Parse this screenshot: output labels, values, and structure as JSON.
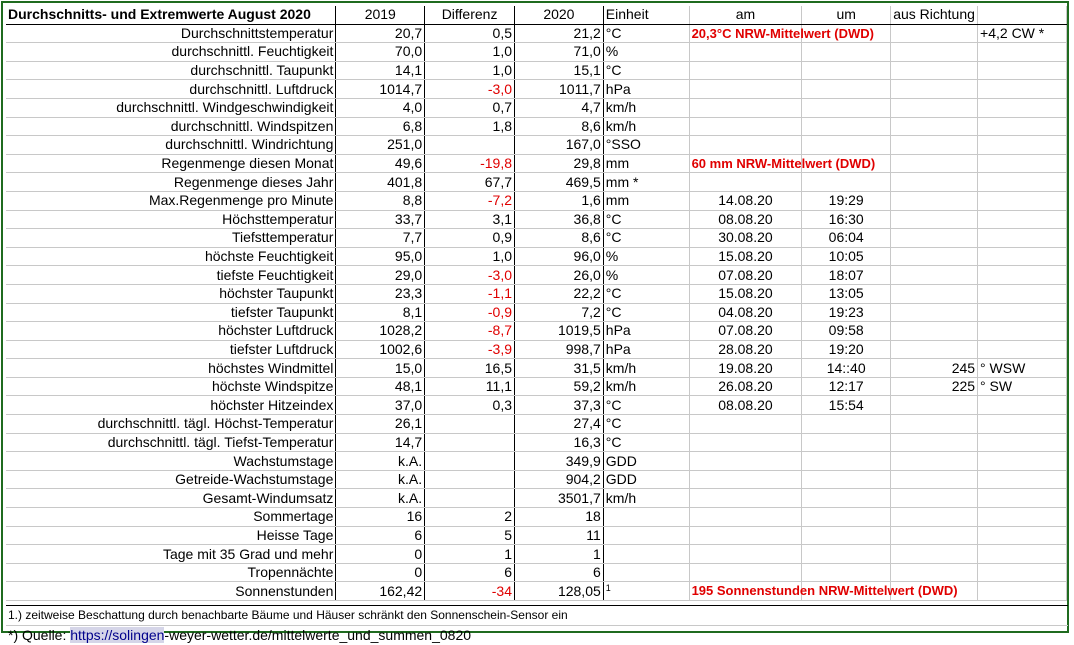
{
  "headers": {
    "label": "Durchschnitts- und Extremwerte August 2020",
    "y2019": "2019",
    "diff": "Differenz",
    "y2020": "2020",
    "unit": "Einheit",
    "am": "am",
    "um": "um",
    "dir": "aus Richtung"
  },
  "rows": [
    {
      "label": "Durchschnittstemperatur",
      "v2019": "20,7",
      "diff": "0,5",
      "v2020": "21,2",
      "unit": "°C",
      "note": "20,3°C NRW-Mittelwert (DWD)",
      "extra": "+4,2 CW  *"
    },
    {
      "label": "durchschnittl. Feuchtigkeit",
      "v2019": "70,0",
      "diff": "1,0",
      "v2020": "71,0",
      "unit": "%"
    },
    {
      "label": "durchschnittl. Taupunkt",
      "v2019": "14,1",
      "diff": "1,0",
      "v2020": "15,1",
      "unit": "°C"
    },
    {
      "label": "durchschnittl. Luftdruck",
      "v2019": "1014,7",
      "diff": "-3,0",
      "diff_neg": true,
      "v2020": "1011,7",
      "unit": " hPa"
    },
    {
      "label": "durchschnittl. Windgeschwindigkeit",
      "v2019": "4,0",
      "diff": "0,7",
      "v2020": "4,7",
      "unit": "km/h"
    },
    {
      "label": "durchschnittl. Windspitzen",
      "v2019": "6,8",
      "diff": "1,8",
      "v2020": "8,6",
      "unit": "km/h"
    },
    {
      "label": "durchschnittl. Windrichtung",
      "v2019": "251,0",
      "diff": "",
      "v2020": "167,0",
      "unit": "°SSO"
    },
    {
      "label": "Regenmenge diesen Monat",
      "v2019": "49,6",
      "diff": "-19,8",
      "diff_neg": true,
      "v2020": "29,8",
      "unit": " mm",
      "note": "60 mm NRW-Mittelwert (DWD)"
    },
    {
      "label": "Regenmenge dieses Jahr",
      "v2019": "401,8",
      "diff": "67,7",
      "v2020": "469,5",
      "unit": " mm     *"
    },
    {
      "label": "Max.Regenmenge pro Minute",
      "v2019": "8,8",
      "diff": "-7,2",
      "diff_neg": true,
      "v2020": "1,6",
      "unit": " mm",
      "am": "14.08.20",
      "um": "19:29"
    },
    {
      "label": "Höchsttemperatur",
      "v2019": "33,7",
      "diff": "3,1",
      "v2020": "36,8",
      "unit": "°C",
      "am": "08.08.20",
      "um": "16:30"
    },
    {
      "label": "Tiefsttemperatur",
      "v2019": "7,7",
      "diff": "0,9",
      "v2020": "8,6",
      "unit": "°C",
      "am": "30.08.20",
      "um": "06:04"
    },
    {
      "label": "höchste Feuchtigkeit",
      "v2019": "95,0",
      "diff": "1,0",
      "v2020": "96,0",
      "unit": "%",
      "am": "15.08.20",
      "um": "10:05"
    },
    {
      "label": "tiefste Feuchtigkeit",
      "v2019": "29,0",
      "diff": "-3,0",
      "diff_neg": true,
      "v2020": "26,0",
      "unit": "%",
      "am": "07.08.20",
      "um": "18:07"
    },
    {
      "label": "höchster Taupunkt",
      "v2019": "23,3",
      "diff": "-1,1",
      "diff_neg": true,
      "v2020": "22,2",
      "unit": "°C",
      "am": "15.08.20",
      "um": "13:05"
    },
    {
      "label": "tiefster Taupunkt",
      "v2019": "8,1",
      "diff": "-0,9",
      "diff_neg": true,
      "v2020": "7,2",
      "unit": "°C",
      "am": "04.08.20",
      "um": "19:23"
    },
    {
      "label": "höchster Luftdruck",
      "v2019": "1028,2",
      "diff": "-8,7",
      "diff_neg": true,
      "v2020": "1019,5",
      "unit": "hPa",
      "am": "07.08.20",
      "um": "09:58"
    },
    {
      "label": "tiefster Luftdruck",
      "v2019": "1002,6",
      "diff": "-3,9",
      "diff_neg": true,
      "v2020": "998,7",
      "unit": " hPa",
      "am": "28.08.20",
      "um": "19:20"
    },
    {
      "label": "höchstes Windmittel",
      "v2019": "15,0",
      "diff": "16,5",
      "v2020": "31,5",
      "unit": " km/h",
      "am": "19.08.20",
      "um": "14::40",
      "dir_deg": "245",
      "dir_txt": "° WSW"
    },
    {
      "label": "höchste Windspitze",
      "v2019": "48,1",
      "diff": "11,1",
      "v2020": "59,2",
      "unit": " km/h",
      "am": "26.08.20",
      "um": "12:17",
      "dir_deg": "225",
      "dir_txt": "° SW"
    },
    {
      "label": "höchster Hitzeindex",
      "v2019": "37,0",
      "diff": "0,3",
      "v2020": "37,3",
      "unit": "°C",
      "am": "08.08.20",
      "um": "15:54"
    },
    {
      "label": "durchschnittl. tägl. Höchst-Temperatur",
      "v2019": "26,1",
      "diff": "",
      "v2020": "27,4",
      "unit": "°C"
    },
    {
      "label": "durchschnittl. tägl. Tiefst-Temperatur",
      "v2019": "14,7",
      "diff": "",
      "v2020": "16,3",
      "unit": "°C"
    },
    {
      "label": "Wachstumstage",
      "v2019": "k.A.",
      "diff": "",
      "v2020": "349,9",
      "unit": " GDD"
    },
    {
      "label": "Getreide-Wachstumstage",
      "v2019": "k.A.",
      "diff": "",
      "v2020": "904,2",
      "unit": " GDD"
    },
    {
      "label": "Gesamt-Windumsatz",
      "v2019": "k.A.",
      "diff": "",
      "v2020": "3501,7",
      "unit": " km/h"
    },
    {
      "label": "Sommertage",
      "v2019": "16",
      "diff": "2",
      "v2020": "18",
      "unit": ""
    },
    {
      "label": "Heisse Tage",
      "v2019": "6",
      "diff": "5",
      "v2020": "11",
      "unit": ""
    },
    {
      "label": "Tage mit 35 Grad und mehr",
      "v2019": "0",
      "diff": "1",
      "v2020": "1",
      "unit": ""
    },
    {
      "label": "Tropennächte",
      "v2019": "0",
      "diff": "6",
      "v2020": "6",
      "unit": ""
    },
    {
      "label": "Sonnenstunden",
      "v2019": "162,42",
      "diff": "-34",
      "diff_neg": true,
      "v2020": "128,05",
      "unit": "1",
      "unit_sup": true,
      "note": "195 Sonnenstunden NRW-Mittelwert (DWD)"
    }
  ],
  "footer": {
    "note1": "1.) zeitweise Beschattung durch benachbarte Bäume und Häuser schränkt den Sonnenschein-Sensor ein",
    "source_prefix": "*) Quelle: ",
    "source_link_part": "https://solingen",
    "source_rest": "-weyer-wetter.de/mittelwerte_und_summen_0820"
  },
  "colors": {
    "frame": "#1f6b1f",
    "negative": "#e00000",
    "grid": "#c8c8c8"
  }
}
